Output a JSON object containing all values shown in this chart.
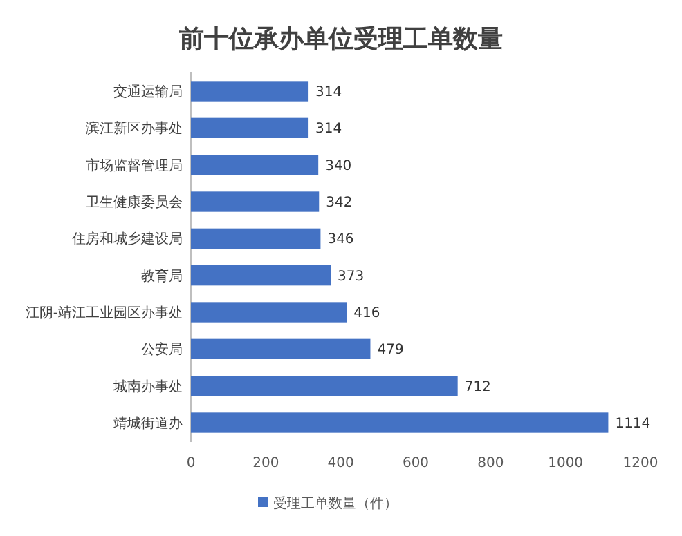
{
  "chart_data": {
    "type": "bar",
    "orientation": "horizontal",
    "title": "前十位承办单位受理工单数量",
    "categories": [
      "交通运输局",
      "滨江新区办事处",
      "市场监督管理局",
      "卫生健康委员会",
      "住房和城乡建设局",
      "教育局",
      "江阴-靖江工业园区办事处",
      "公安局",
      "城南办事处",
      "靖城街道办"
    ],
    "series": [
      {
        "name": "受理工单数量（件）",
        "color": "#4472c4",
        "values": [
          314,
          314,
          340,
          342,
          346,
          373,
          416,
          479,
          712,
          1114
        ]
      }
    ],
    "xlim": [
      0,
      1200
    ],
    "xticks": [
      0,
      200,
      400,
      600,
      800,
      1000,
      1200
    ],
    "data_labels": true,
    "grid": false,
    "legend": "bottom"
  }
}
